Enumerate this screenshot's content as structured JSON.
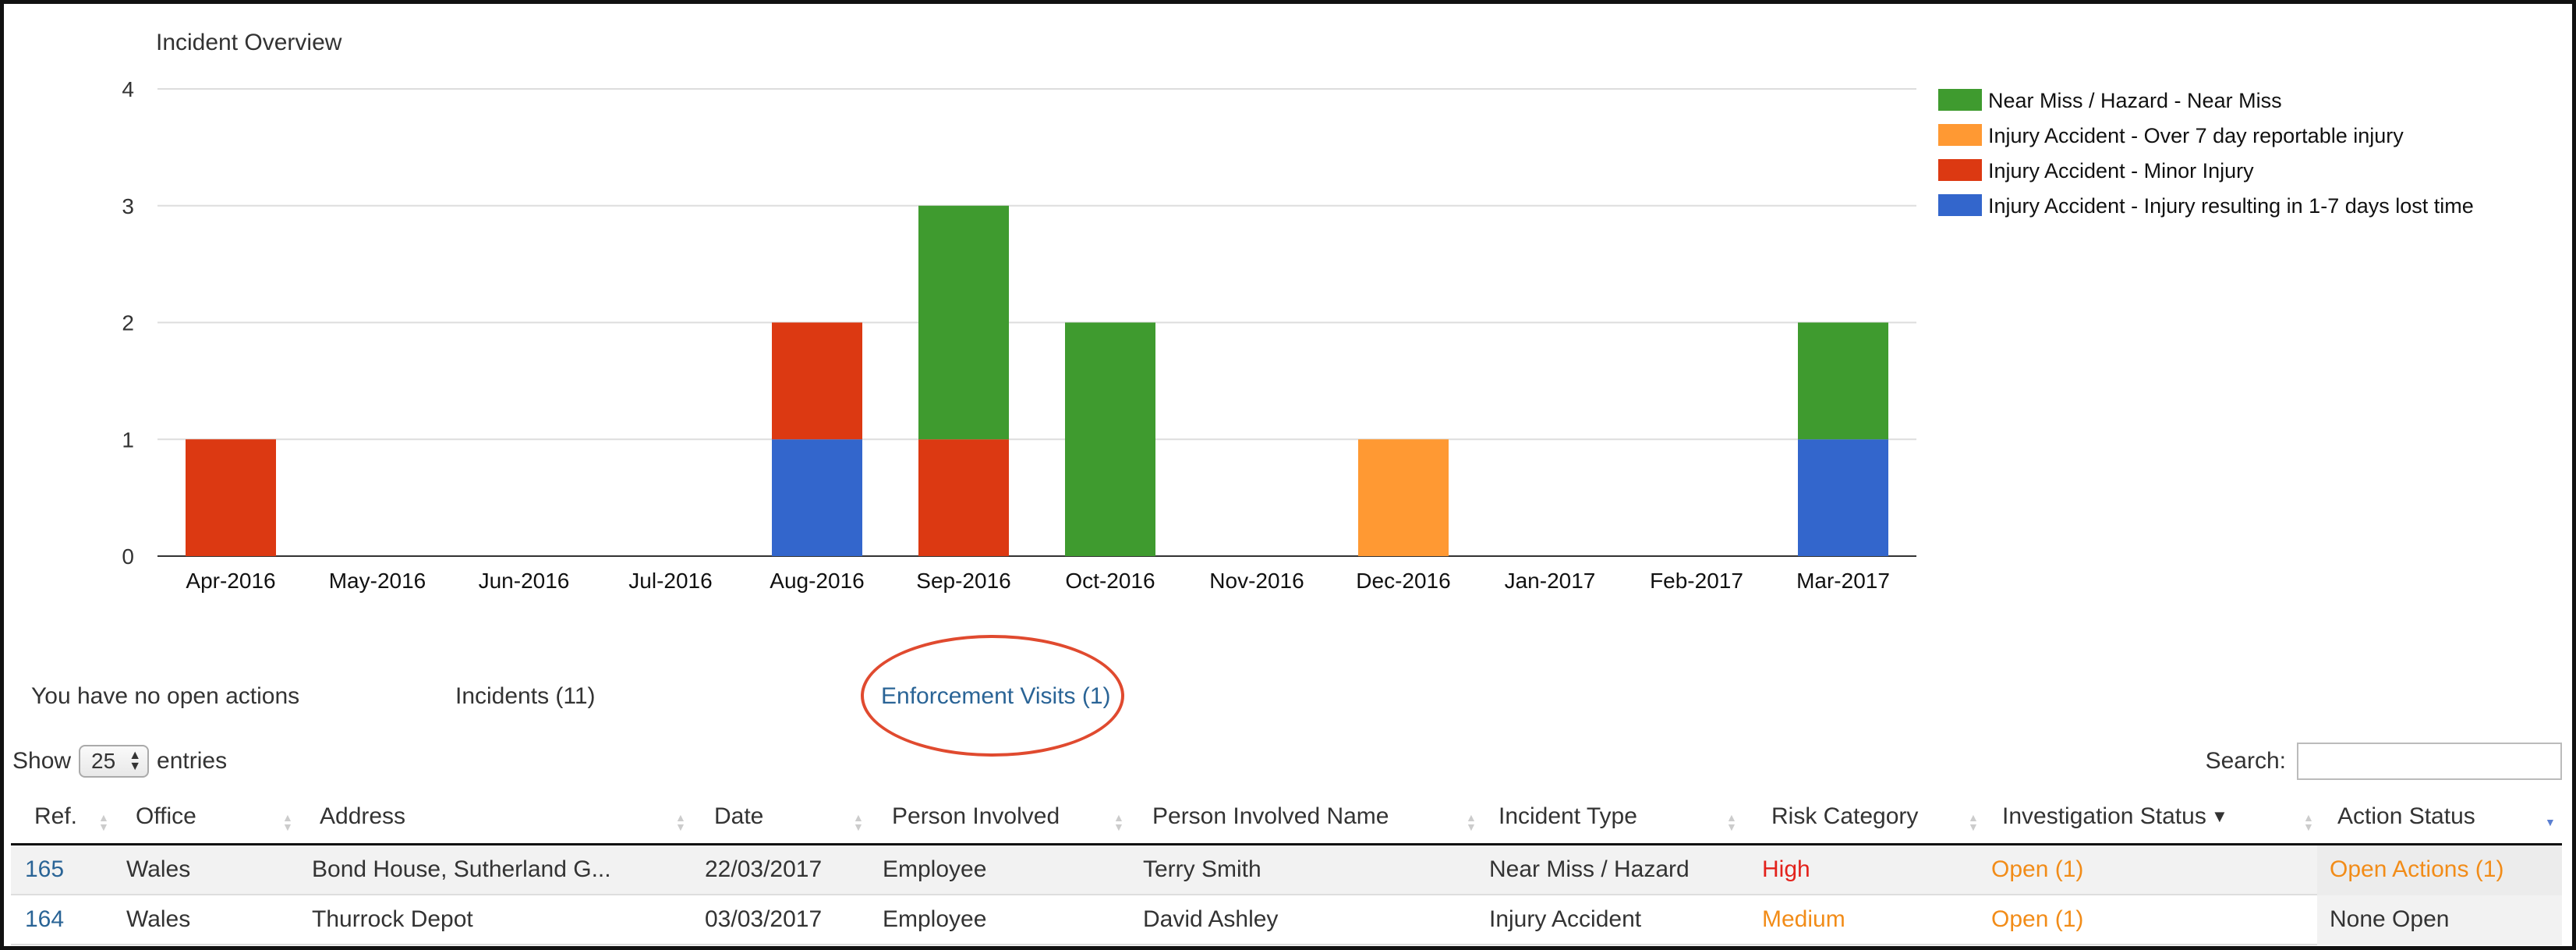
{
  "chart_data": {
    "type": "bar",
    "stacked": true,
    "title": "Incident Overview",
    "categories": [
      "Apr-2016",
      "May-2016",
      "Jun-2016",
      "Jul-2016",
      "Aug-2016",
      "Sep-2016",
      "Oct-2016",
      "Nov-2016",
      "Dec-2016",
      "Jan-2017",
      "Feb-2017",
      "Mar-2017"
    ],
    "series": [
      {
        "name": "Injury Accident - Injury resulting in 1-7 days lost time",
        "color": "#3366cc",
        "values": [
          0,
          0,
          0,
          0,
          1,
          0,
          0,
          0,
          0,
          0,
          0,
          1
        ]
      },
      {
        "name": "Injury Accident - Minor Injury",
        "color": "#dc3912",
        "values": [
          1,
          0,
          0,
          0,
          1,
          1,
          0,
          0,
          0,
          0,
          0,
          0
        ]
      },
      {
        "name": "Injury Accident - Over 7 day reportable injury",
        "color": "#ff9933",
        "values": [
          0,
          0,
          0,
          0,
          0,
          0,
          0,
          0,
          1,
          0,
          0,
          0
        ]
      },
      {
        "name": "Near Miss / Hazard - Near Miss",
        "color": "#3f9b2f",
        "values": [
          0,
          0,
          0,
          0,
          0,
          2,
          2,
          0,
          0,
          0,
          0,
          1
        ]
      }
    ],
    "legend_order": [
      3,
      2,
      1,
      0
    ],
    "ylim": [
      0,
      4
    ],
    "yticks": [
      0,
      1,
      2,
      3,
      4
    ],
    "grid": true,
    "legend_position": "right"
  },
  "tabs": {
    "actions": "You have no open actions",
    "incidents": "Incidents (11)",
    "enforcement": "Enforcement Visits (1)"
  },
  "controls": {
    "show_label": "Show",
    "entries_value": "25",
    "entries_label": "entries",
    "search_label": "Search:",
    "search_value": ""
  },
  "table": {
    "columns": [
      "Ref.",
      "Office",
      "Address",
      "Date",
      "Person Involved",
      "Person Involved Name",
      "Incident Type",
      "Risk Category",
      "Investigation Status",
      "Action Status"
    ],
    "sorted_column_marker": "▼",
    "rows": [
      {
        "ref": "165",
        "office": "Wales",
        "address": "Bond House, Sutherland G...",
        "date": "22/03/2017",
        "person": "Employee",
        "name": "Terry Smith",
        "type": "Near Miss / Hazard",
        "risk": "High",
        "investigation": "Open (1)",
        "action": "Open Actions (1)"
      },
      {
        "ref": "164",
        "office": "Wales",
        "address": "Thurrock Depot",
        "date": "03/03/2017",
        "person": "Employee",
        "name": "David Ashley",
        "type": "Injury Accident",
        "risk": "Medium",
        "investigation": "Open (1)",
        "action": "None Open"
      }
    ]
  },
  "colors": {
    "link": "#2a6496",
    "risk_high": "#e3221c",
    "risk_medium": "#f28c18",
    "status_open": "#f28c18",
    "highlight_ring": "#e04a2f"
  }
}
